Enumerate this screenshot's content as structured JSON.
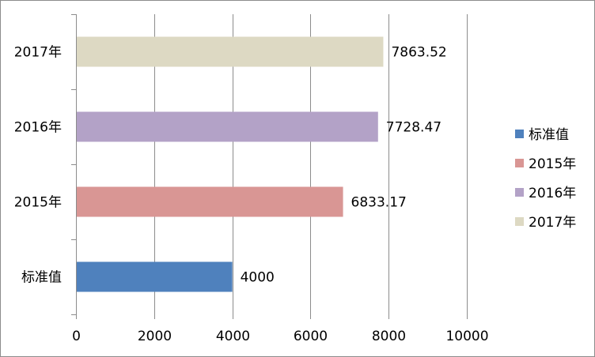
{
  "chart_data": {
    "type": "bar",
    "orientation": "horizontal",
    "categories": [
      "标准值",
      "2015年",
      "2016年",
      "2017年"
    ],
    "values": [
      4000,
      6833.17,
      7728.47,
      7863.52
    ],
    "value_labels": [
      "4000",
      "6833.17",
      "7728.47",
      "7863.52"
    ],
    "colors": [
      "#4f81bd",
      "#d99694",
      "#b3a2c7",
      "#ddd9c3"
    ],
    "xlim": [
      0,
      10000
    ],
    "xticks": [
      0,
      2000,
      4000,
      6000,
      8000,
      10000
    ],
    "xtick_labels": [
      "0",
      "2000",
      "4000",
      "6000",
      "8000",
      "10000"
    ],
    "title": "",
    "xlabel": "",
    "ylabel": "",
    "grid": "vertical",
    "legend": {
      "position": "right",
      "entries": [
        "标准值",
        "2015年",
        "2016年",
        "2017年"
      ]
    }
  }
}
